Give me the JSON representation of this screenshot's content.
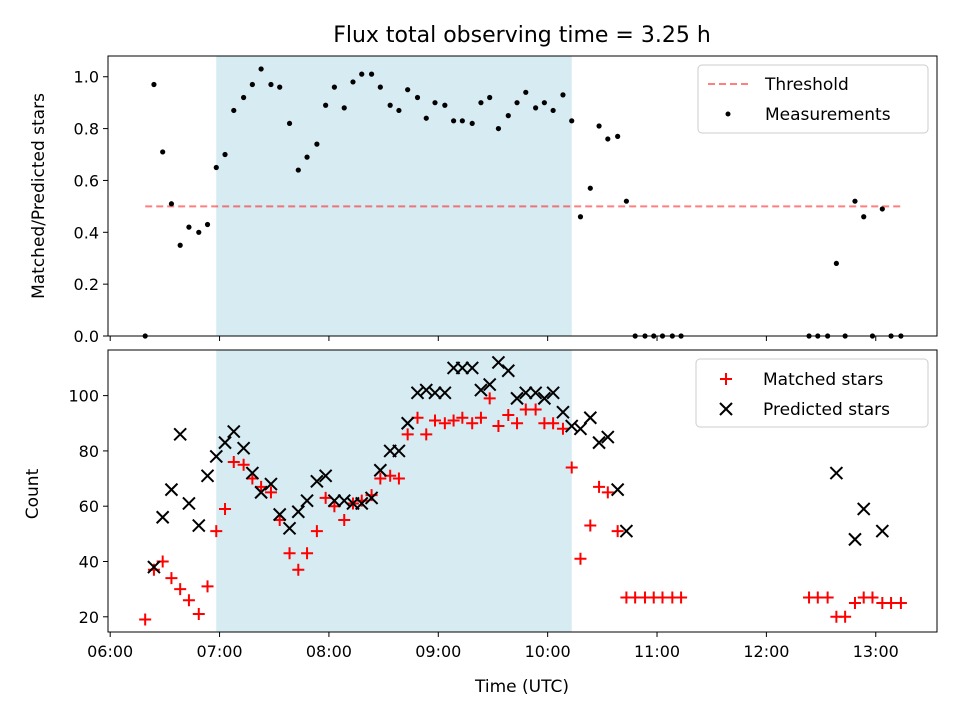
{
  "title": "Flux total observing time = 3.25 h",
  "colors": {
    "observing_band": "#add8e6",
    "threshold": "#ff0000",
    "measurements": "#000000",
    "matched": "#ff0000",
    "predicted": "#000000"
  },
  "chart_data": [
    {
      "type": "scatter",
      "title": "Flux total observing time = 3.25 h",
      "xlabel": "",
      "ylabel": "Matched/Predicted stars",
      "xlim": [
        5.98,
        13.56
      ],
      "ylim": [
        0.0,
        1.08
      ],
      "yticks": [
        0.0,
        0.2,
        0.4,
        0.6,
        0.8,
        1.0
      ],
      "ytick_labels": [
        "0.0",
        "0.2",
        "0.4",
        "0.6",
        "0.8",
        "1.0"
      ],
      "highlight_span": [
        6.97,
        10.22
      ],
      "legend": {
        "position": "top-right",
        "entries": [
          "Threshold",
          "Measurements"
        ]
      },
      "threshold": {
        "name": "Threshold",
        "value": 0.5,
        "x_range": [
          6.32,
          13.23
        ],
        "style": "dashed"
      },
      "series": [
        {
          "name": "Measurements",
          "marker": "dot",
          "x": [
            6.32,
            6.4,
            6.48,
            6.56,
            6.64,
            6.72,
            6.81,
            6.89,
            6.97,
            7.05,
            7.13,
            7.22,
            7.3,
            7.38,
            7.47,
            7.55,
            7.64,
            7.72,
            7.8,
            7.89,
            7.97,
            8.05,
            8.14,
            8.22,
            8.3,
            8.39,
            8.47,
            8.56,
            8.64,
            8.72,
            8.81,
            8.89,
            8.97,
            9.06,
            9.14,
            9.22,
            9.31,
            9.39,
            9.47,
            9.55,
            9.64,
            9.72,
            9.8,
            9.89,
            9.97,
            10.05,
            10.14,
            10.22,
            10.3,
            10.39,
            10.47,
            10.55,
            10.64,
            10.72,
            10.8,
            10.89,
            10.97,
            11.05,
            11.14,
            11.22,
            12.39,
            12.47,
            12.56,
            12.64,
            12.72,
            12.81,
            12.89,
            12.97,
            13.06,
            13.14,
            13.23
          ],
          "y": [
            0.0,
            0.97,
            0.71,
            0.51,
            0.35,
            0.42,
            0.4,
            0.43,
            0.65,
            0.7,
            0.87,
            0.92,
            0.97,
            1.03,
            0.97,
            0.96,
            0.82,
            0.64,
            0.69,
            0.74,
            0.89,
            0.96,
            0.88,
            0.98,
            1.01,
            1.01,
            0.96,
            0.89,
            0.87,
            0.95,
            0.92,
            0.84,
            0.9,
            0.89,
            0.83,
            0.83,
            0.82,
            0.9,
            0.92,
            0.8,
            0.85,
            0.9,
            0.94,
            0.88,
            0.9,
            0.87,
            0.93,
            0.83,
            0.46,
            0.57,
            0.81,
            0.76,
            0.77,
            0.52,
            0.0,
            0.0,
            0.0,
            0.0,
            0.0,
            0.0,
            0.0,
            0.0,
            0.0,
            0.28,
            0.0,
            0.52,
            0.46,
            0.0,
            0.49,
            0.0,
            0.0
          ]
        }
      ]
    },
    {
      "type": "scatter",
      "title": "",
      "xlabel": "Time (UTC)",
      "ylabel": "Count",
      "xlim": [
        5.98,
        13.56
      ],
      "ylim": [
        14.5,
        116.5
      ],
      "xticks": [
        6,
        7,
        8,
        9,
        10,
        11,
        12,
        13
      ],
      "xtick_labels": [
        "06:00",
        "07:00",
        "08:00",
        "09:00",
        "10:00",
        "11:00",
        "12:00",
        "13:00"
      ],
      "yticks": [
        20,
        40,
        60,
        80,
        100
      ],
      "ytick_labels": [
        "20",
        "40",
        "60",
        "80",
        "100"
      ],
      "highlight_span": [
        6.97,
        10.22
      ],
      "legend": {
        "position": "top-right",
        "entries": [
          "Matched stars",
          "Predicted stars"
        ]
      },
      "series": [
        {
          "name": "Matched stars",
          "marker": "plus",
          "x": [
            6.32,
            6.4,
            6.48,
            6.56,
            6.64,
            6.72,
            6.81,
            6.89,
            6.97,
            7.05,
            7.13,
            7.22,
            7.3,
            7.38,
            7.47,
            7.55,
            7.64,
            7.72,
            7.8,
            7.89,
            7.97,
            8.05,
            8.14,
            8.22,
            8.3,
            8.39,
            8.47,
            8.56,
            8.64,
            8.72,
            8.81,
            8.89,
            8.97,
            9.06,
            9.14,
            9.22,
            9.31,
            9.39,
            9.47,
            9.55,
            9.64,
            9.72,
            9.8,
            9.89,
            9.97,
            10.05,
            10.14,
            10.22,
            10.3,
            10.39,
            10.47,
            10.55,
            10.64,
            10.72,
            10.8,
            10.89,
            10.97,
            11.05,
            11.14,
            11.22,
            12.39,
            12.47,
            12.56,
            12.64,
            12.72,
            12.81,
            12.89,
            12.97,
            13.06,
            13.14,
            13.23
          ],
          "y": [
            19,
            37,
            40,
            34,
            30,
            26,
            21,
            31,
            51,
            59,
            76,
            75,
            70,
            67,
            65,
            55,
            43,
            37,
            43,
            51,
            63,
            60,
            55,
            61,
            62,
            64,
            70,
            71,
            70,
            86,
            92,
            86,
            91,
            90,
            91,
            92,
            90,
            92,
            99,
            89,
            93,
            90,
            95,
            95,
            90,
            90,
            88,
            74,
            41,
            53,
            67,
            65,
            51,
            27,
            27,
            27,
            27,
            27,
            27,
            27,
            27,
            27,
            27,
            20,
            20,
            25,
            27,
            27,
            25,
            25,
            25
          ]
        },
        {
          "name": "Predicted stars",
          "marker": "x",
          "x": [
            6.4,
            6.48,
            6.56,
            6.64,
            6.72,
            6.81,
            6.89,
            6.97,
            7.05,
            7.13,
            7.22,
            7.3,
            7.38,
            7.47,
            7.55,
            7.64,
            7.72,
            7.8,
            7.89,
            7.97,
            8.05,
            8.14,
            8.22,
            8.3,
            8.39,
            8.47,
            8.56,
            8.64,
            8.72,
            8.81,
            8.89,
            8.97,
            9.06,
            9.14,
            9.22,
            9.31,
            9.39,
            9.47,
            9.55,
            9.64,
            9.72,
            9.8,
            9.89,
            9.97,
            10.05,
            10.14,
            10.22,
            10.3,
            10.39,
            10.47,
            10.55,
            10.64,
            10.72,
            12.64,
            12.81,
            12.89,
            13.06
          ],
          "y": [
            38,
            56,
            66,
            86,
            61,
            53,
            71,
            78,
            83,
            87,
            81,
            72,
            65,
            68,
            57,
            52,
            58,
            62,
            69,
            71,
            62,
            62,
            61,
            61,
            63,
            73,
            80,
            80,
            90,
            101,
            102,
            101,
            101,
            110,
            110,
            110,
            102,
            104,
            112,
            109,
            99,
            101,
            101,
            99,
            101,
            94,
            89,
            88,
            92,
            83,
            85,
            66,
            51,
            72,
            48,
            59,
            51
          ]
        }
      ]
    }
  ]
}
